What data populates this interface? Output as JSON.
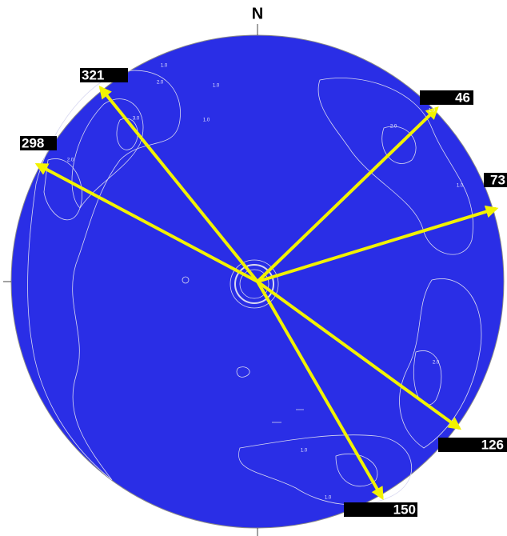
{
  "chart_data": {
    "type": "azimuth",
    "north_label": "N",
    "values": [
      321,
      298,
      46,
      73,
      126,
      150
    ],
    "color": "#f2f200",
    "background": "#2a2ee6",
    "contour_labels": [
      "1.0",
      "2.0",
      "3.0",
      "1.0",
      "1.0",
      "2.0",
      "1.0",
      "2.0",
      "1.0",
      "2.0",
      "1.0",
      "1.0"
    ]
  }
}
